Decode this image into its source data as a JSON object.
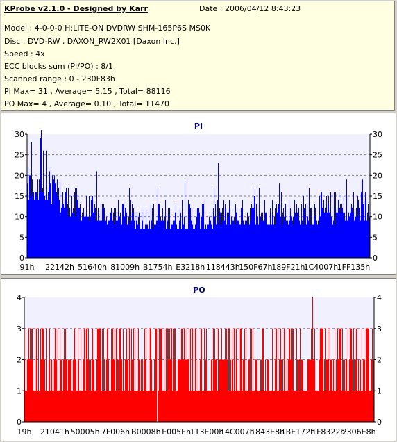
{
  "info": {
    "title": "KProbe v2.1.0 - Designed by Karr",
    "date": "Date : 2006/04/12 8:43:23",
    "model": "Model : 4-0-0-0 H:LITE-ON DVDRW SHM-165P6S MS0K",
    "disc": "Disc : DVD-RW , DAXON_RW2X01 [Daxon Inc.]",
    "speed": "Speed : 4x",
    "ecc": "ECC blocks sum (PI/PO) : 8/1",
    "range": "Scanned range : 0 - 230F83h",
    "pi_stats": "PI Max= 31 , Average= 5.15 , Total= 88116",
    "po_stats": "PO Max= 4 , Average= 0.10 , Total= 11470"
  },
  "chart_data": [
    {
      "type": "bar",
      "title": "PI",
      "color": "#0000ff",
      "ylim": [
        0,
        30
      ],
      "yticks": [
        "0",
        "5",
        "10",
        "15",
        "20",
        "25",
        "30"
      ],
      "xticks": [
        "91h",
        "22142h",
        "51640h",
        "81009h",
        "B1754h",
        "E3218h",
        "118443h",
        "150F67h",
        "189F21h",
        "1C4007h",
        "1FF135h"
      ],
      "grid": true,
      "max": 31,
      "average": 5.15,
      "profile": [
        {
          "x": 0.0,
          "low": 14,
          "high": 22
        },
        {
          "x": 0.05,
          "low": 13,
          "high": 25
        },
        {
          "x": 0.1,
          "low": 11,
          "high": 20
        },
        {
          "x": 0.16,
          "low": 9,
          "high": 16
        },
        {
          "x": 0.25,
          "low": 8,
          "high": 14
        },
        {
          "x": 0.35,
          "low": 7,
          "high": 14
        },
        {
          "x": 0.5,
          "low": 7,
          "high": 14
        },
        {
          "x": 0.7,
          "low": 8,
          "high": 15
        },
        {
          "x": 0.85,
          "low": 8,
          "high": 16
        },
        {
          "x": 1.0,
          "low": 9,
          "high": 17
        }
      ]
    },
    {
      "type": "bar",
      "title": "PO",
      "color": "#ff0000",
      "ylim": [
        0,
        4
      ],
      "yticks": [
        "0",
        "1",
        "2",
        "3",
        "4"
      ],
      "xticks": [
        "19h",
        "21041h",
        "50005h",
        "7F006h",
        "B0008h",
        "E005Eh",
        "113E00h",
        "14C007h",
        "1843E8h",
        "1BE172h",
        "1F8322h",
        "2306E8h"
      ],
      "grid": true,
      "max": 4,
      "average": 0.1
    }
  ]
}
